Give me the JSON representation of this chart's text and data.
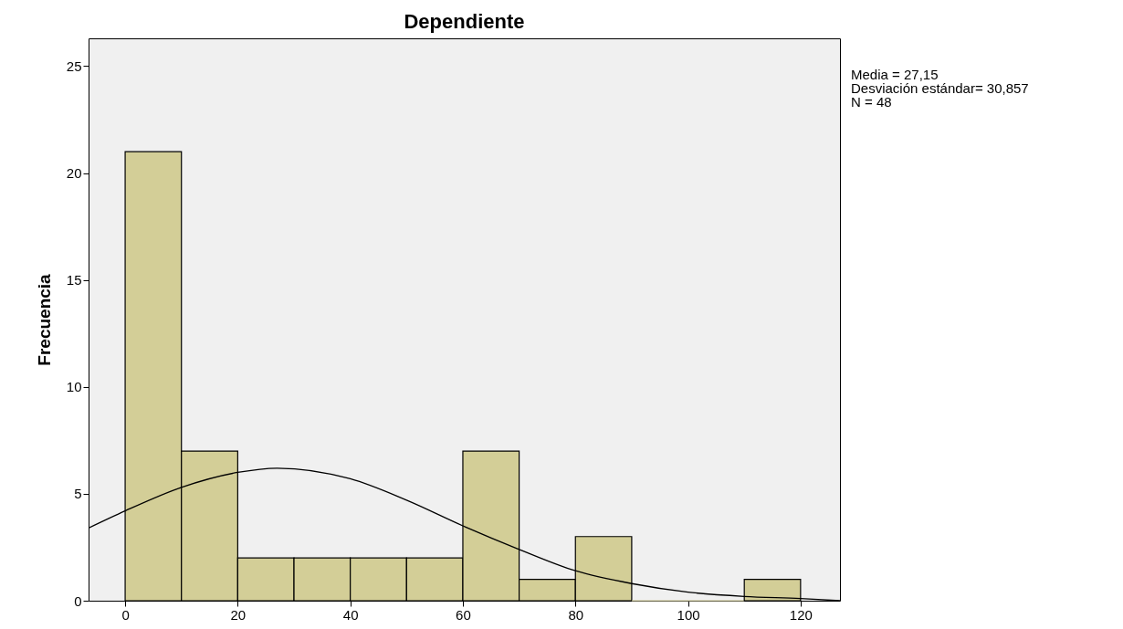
{
  "chart_data": {
    "type": "histogram",
    "title": "Dependiente",
    "ylabel": "Frecuencia",
    "annotations": [
      "Media = 27,15",
      "Desviación estándar= 30,857",
      "N = 48"
    ],
    "bins": [
      0,
      10,
      20,
      30,
      40,
      50,
      60,
      70,
      80,
      90,
      100,
      110,
      120
    ],
    "values": [
      21,
      7,
      2,
      2,
      2,
      2,
      7,
      1,
      3,
      0,
      0,
      1
    ],
    "color": "#d3ce97",
    "series": [
      {
        "type": "line",
        "color": "#000000",
        "x": [
          -6.5,
          0,
          10,
          20,
          27,
          40,
          50,
          60,
          70,
          80,
          90,
          100,
          110,
          120,
          127
        ],
        "values": [
          3.4,
          4.2,
          5.3,
          6.0,
          6.2,
          5.7,
          4.7,
          3.5,
          2.4,
          1.4,
          0.8,
          0.4,
          0.2,
          0.1,
          0.0
        ]
      }
    ],
    "xlim": [
      -6.5,
      127
    ],
    "xticks": [
      0,
      20,
      40,
      60,
      80,
      100,
      120
    ],
    "ylim": [
      0,
      26.3
    ],
    "yticks": [
      0,
      5,
      10,
      15,
      20,
      25
    ]
  }
}
